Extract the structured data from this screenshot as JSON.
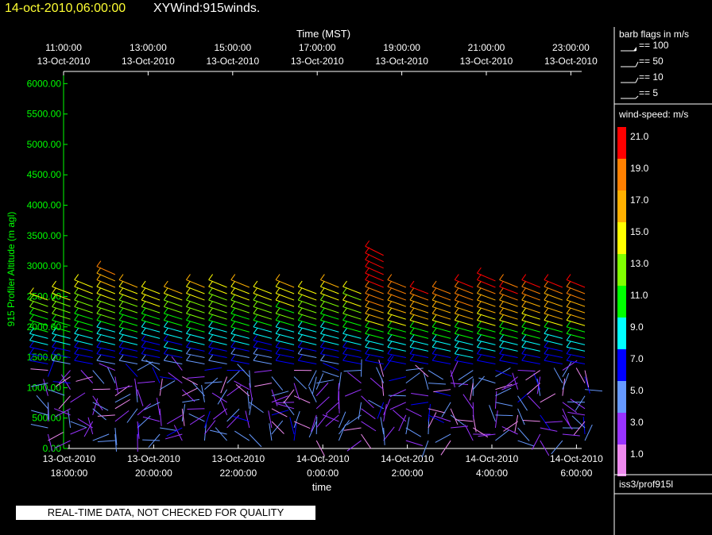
{
  "title": {
    "date": "14-oct-2010,06:00:00",
    "name": "XYWind:915winds."
  },
  "stamp": "REAL-TIME DATA, NOT CHECKED FOR QUALITY",
  "legend_barbs": {
    "title": "barb flags in m/s",
    "items": [
      "== 100",
      "== 50",
      "== 10",
      "== 5"
    ]
  },
  "colorbar": {
    "title": "wind-speed: m/s",
    "labels": [
      "21.0",
      "19.0",
      "17.0",
      "15.0",
      "13.0",
      "11.0",
      "9.0",
      "7.0",
      "5.0",
      "3.0",
      "1.0"
    ],
    "colors": [
      "#ff0000",
      "#ff8000",
      "#ffb000",
      "#ffff00",
      "#80ff00",
      "#00ff00",
      "#00ffff",
      "#0000ff",
      "#6699ff",
      "#9933ff",
      "#ee88ee"
    ]
  },
  "source_label": "iss3/prof915l",
  "chart_data": {
    "type": "wind barbs",
    "y_label": "915 Profiler Altitude (m agl)",
    "y_ticks": [
      "0.00",
      "500.00",
      "1000.00",
      "1500.00",
      "2000.00",
      "2500.00",
      "3000.00",
      "3500.00",
      "4000.00",
      "4500.00",
      "5000.00",
      "5500.00",
      "6000.00"
    ],
    "ylim": [
      0,
      6200
    ],
    "x_label_bottom": "time",
    "x_label_top": "Time (MST)",
    "bottom_ticks": [
      {
        "line1": "13-Oct-2010",
        "line2": "18:00:00"
      },
      {
        "line1": "13-Oct-2010",
        "line2": "20:00:00"
      },
      {
        "line1": "13-Oct-2010",
        "line2": "22:00:00"
      },
      {
        "line1": "14-Oct-2010",
        "line2": "0:00:00"
      },
      {
        "line1": "14-Oct-2010",
        "line2": "2:00:00"
      },
      {
        "line1": "14-Oct-2010",
        "line2": "4:00:00"
      },
      {
        "line1": "14-Oct-2010",
        "line2": "6:00:00"
      }
    ],
    "top_ticks": [
      {
        "line1": "11:00:00",
        "line2": "13-Oct-2010"
      },
      {
        "line1": "13:00:00",
        "line2": "13-Oct-2010"
      },
      {
        "line1": "15:00:00",
        "line2": "13-Oct-2010"
      },
      {
        "line1": "17:00:00",
        "line2": "13-Oct-2010"
      },
      {
        "line1": "19:00:00",
        "line2": "13-Oct-2010"
      },
      {
        "line1": "21:00:00",
        "line2": "13-Oct-2010"
      },
      {
        "line1": "23:00:00",
        "line2": "13-Oct-2010"
      }
    ],
    "profile_count": 25,
    "time_range_hours": [
      -0.5,
      12.2
    ],
    "max_altitude_m": [
      2450,
      2600,
      2650,
      2900,
      2650,
      2600,
      2600,
      2650,
      2650,
      2650,
      2550,
      2650,
      2600,
      2700,
      2600,
      3200,
      2750,
      2600,
      2600,
      2700,
      2800,
      2700,
      2700,
      2700,
      2650
    ]
  }
}
